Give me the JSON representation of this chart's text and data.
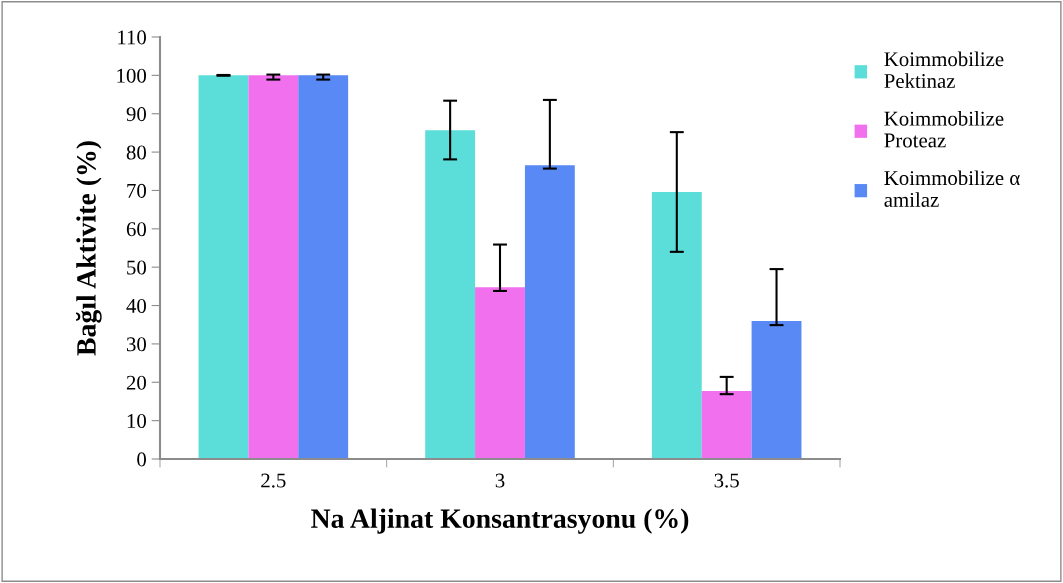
{
  "chart_data": {
    "type": "bar",
    "xlabel": "Na Aljinat Konsantrasyonu (%)",
    "ylabel": "Bağıl Aktivite (%)",
    "categories": [
      "2.5",
      "3",
      "3.5"
    ],
    "series": [
      {
        "name": "Koimmobilize\nPektinaz",
        "color": "#5bddd9",
        "values": [
          100,
          85.7,
          69.6
        ],
        "errors": [
          [
            99.9,
            100.1
          ],
          [
            78.1,
            93.4
          ],
          [
            54.0,
            85.2
          ]
        ]
      },
      {
        "name": "Koimmobilize\nProteaz",
        "color": "#f070ee",
        "values": [
          100,
          44.8,
          17.7
        ],
        "errors": [
          [
            98.9,
            100.2
          ],
          [
            43.8,
            55.9
          ],
          [
            16.9,
            21.4
          ]
        ]
      },
      {
        "name": "Koimmobilize α\namilaz",
        "color": "#5889f5",
        "values": [
          100,
          76.6,
          36.0
        ],
        "errors": [
          [
            98.9,
            100.2
          ],
          [
            75.7,
            93.6
          ],
          [
            34.9,
            49.5
          ]
        ]
      }
    ],
    "ylim": [
      0,
      110
    ],
    "yticks": [
      0,
      10,
      20,
      30,
      40,
      50,
      60,
      70,
      80,
      90,
      100,
      110
    ],
    "grid": false,
    "legend": "right"
  }
}
